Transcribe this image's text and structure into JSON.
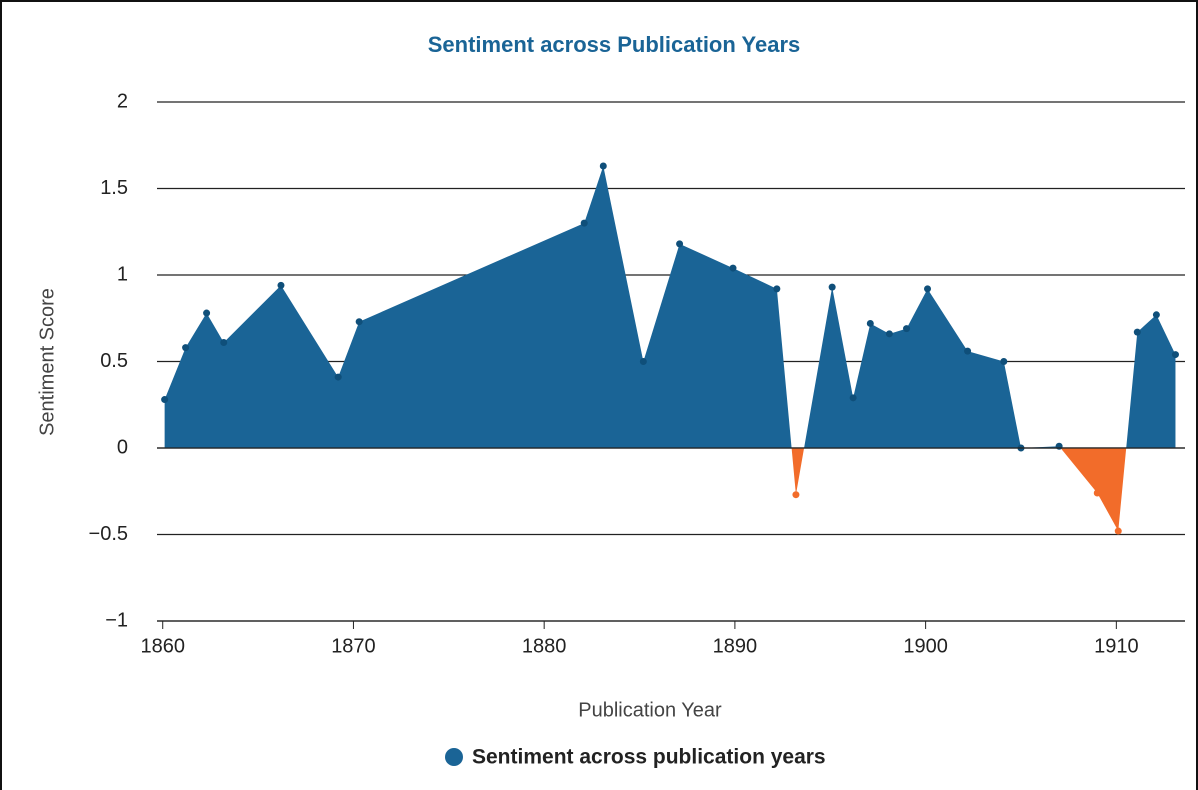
{
  "chart_data": {
    "type": "area",
    "title": "Sentiment across Publication Years",
    "x_label": "Publication Year",
    "y_label": "Sentiment Score",
    "x": [
      1860.1,
      1861.2,
      1862.3,
      1863.2,
      1866.2,
      1869.2,
      1870.3,
      1882.1,
      1883.1,
      1885.2,
      1887.1,
      1889.9,
      1892.2,
      1893.2,
      1895.1,
      1896.2,
      1897.1,
      1898.1,
      1899.0,
      1900.1,
      1902.2,
      1904.1,
      1905.0,
      1907.0,
      1909.0,
      1910.1,
      1911.1,
      1912.1,
      1913.1
    ],
    "series": [
      {
        "name": "Sentiment across publication years",
        "color": "#1a6496",
        "negative_color": "#f26c2a",
        "values": [
          0.28,
          0.58,
          0.78,
          0.61,
          0.94,
          0.41,
          0.73,
          1.3,
          1.63,
          0.5,
          1.18,
          1.04,
          0.92,
          -0.27,
          0.93,
          0.29,
          0.72,
          0.66,
          0.69,
          0.92,
          0.56,
          0.5,
          0,
          0.01,
          -0.26,
          -0.48,
          0.67,
          0.77,
          0.54
        ]
      }
    ],
    "xlim": [
      1859.7,
      1913.6
    ],
    "ylim": [
      -1,
      2
    ],
    "xticks": [
      1860,
      1870,
      1880,
      1890,
      1900,
      1910
    ],
    "yticks": [
      2,
      1.5,
      1,
      0.5,
      0,
      {
        "value": -0.5,
        "label": "−0.5"
      },
      {
        "value": -1,
        "label": "−1"
      }
    ],
    "grid": true,
    "legend": "bottom"
  }
}
